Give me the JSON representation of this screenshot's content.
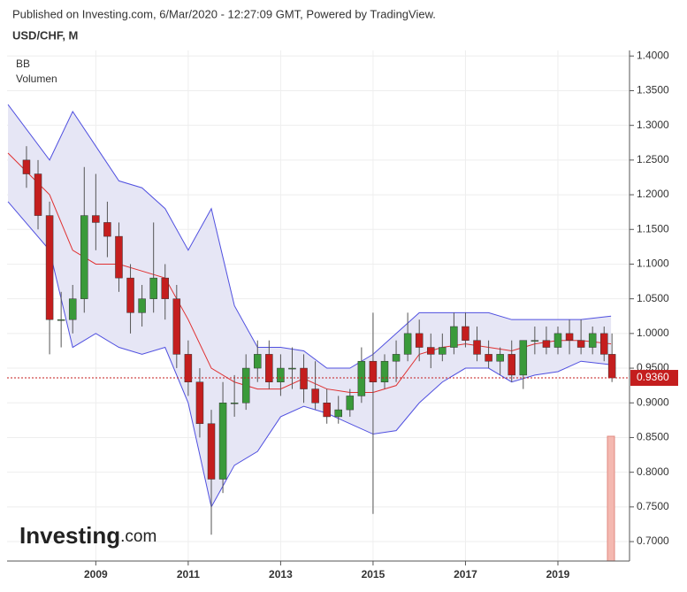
{
  "header": {
    "published": "Published on Investing.com, 6/Mar/2020 - 12:27:09 GMT, Powered by TradingView.",
    "symbol": "USD/CHF, M"
  },
  "indicators": [
    "BB",
    "Volumen"
  ],
  "logo": {
    "main": "Investing",
    "suffix": ".com"
  },
  "chart_data": {
    "type": "candlestick",
    "x": [
      2007.5,
      2007.75,
      2008.0,
      2008.25,
      2008.5,
      2008.75,
      2009.0,
      2009.25,
      2009.5,
      2009.75,
      2010.0,
      2010.25,
      2010.5,
      2010.75,
      2011.0,
      2011.25,
      2011.5,
      2011.75,
      2012.0,
      2012.25,
      2012.5,
      2012.75,
      2013.0,
      2013.25,
      2013.5,
      2013.75,
      2014.0,
      2014.25,
      2014.5,
      2014.75,
      2015.0,
      2015.25,
      2015.5,
      2015.75,
      2016.0,
      2016.25,
      2016.5,
      2016.75,
      2017.0,
      2017.25,
      2017.5,
      2017.75,
      2018.0,
      2018.25,
      2018.5,
      2018.75,
      2019.0,
      2019.25,
      2019.5,
      2019.75,
      2020.0,
      2020.17
    ],
    "open": [
      1.25,
      1.23,
      1.17,
      1.02,
      1.02,
      1.05,
      1.17,
      1.16,
      1.14,
      1.08,
      1.03,
      1.05,
      1.08,
      1.05,
      0.97,
      0.93,
      0.87,
      0.79,
      0.9,
      0.9,
      0.95,
      0.97,
      0.93,
      0.95,
      0.95,
      0.92,
      0.9,
      0.88,
      0.89,
      0.91,
      0.96,
      0.93,
      0.96,
      0.97,
      1.0,
      0.98,
      0.97,
      0.98,
      1.01,
      0.99,
      0.97,
      0.96,
      0.97,
      0.94,
      0.99,
      0.99,
      0.98,
      1.0,
      0.99,
      0.98,
      1.0,
      0.97
    ],
    "high": [
      1.27,
      1.25,
      1.19,
      1.06,
      1.07,
      1.24,
      1.23,
      1.19,
      1.16,
      1.1,
      1.07,
      1.16,
      1.1,
      1.07,
      0.99,
      0.95,
      0.89,
      0.93,
      0.94,
      0.97,
      0.99,
      0.99,
      0.97,
      0.98,
      0.97,
      0.96,
      0.92,
      0.91,
      0.92,
      0.98,
      1.03,
      0.97,
      0.99,
      1.03,
      1.02,
      1.0,
      1.0,
      1.03,
      1.03,
      1.01,
      0.99,
      0.98,
      0.99,
      0.99,
      1.01,
      1.01,
      1.01,
      1.02,
      1.02,
      1.01,
      1.01,
      1.0
    ],
    "low": [
      1.21,
      1.15,
      0.97,
      0.98,
      1.0,
      1.03,
      1.12,
      1.11,
      1.06,
      1.0,
      1.01,
      1.03,
      1.02,
      0.95,
      0.91,
      0.85,
      0.71,
      0.77,
      0.88,
      0.89,
      0.93,
      0.92,
      0.91,
      0.92,
      0.9,
      0.89,
      0.87,
      0.87,
      0.88,
      0.9,
      0.74,
      0.92,
      0.93,
      0.96,
      0.96,
      0.95,
      0.96,
      0.97,
      0.98,
      0.96,
      0.95,
      0.94,
      0.93,
      0.92,
      0.97,
      0.97,
      0.97,
      0.97,
      0.97,
      0.97,
      0.96,
      0.93
    ],
    "close": [
      1.23,
      1.17,
      1.02,
      1.02,
      1.05,
      1.17,
      1.16,
      1.14,
      1.08,
      1.03,
      1.05,
      1.08,
      1.05,
      0.97,
      0.93,
      0.87,
      0.79,
      0.9,
      0.9,
      0.95,
      0.97,
      0.93,
      0.95,
      0.95,
      0.92,
      0.9,
      0.88,
      0.89,
      0.91,
      0.96,
      0.93,
      0.96,
      0.97,
      1.0,
      0.98,
      0.97,
      0.98,
      1.01,
      0.99,
      0.97,
      0.96,
      0.97,
      0.94,
      0.99,
      0.99,
      0.98,
      1.0,
      0.99,
      0.98,
      1.0,
      0.97,
      0.936
    ],
    "up_color": "#3a9a3a",
    "down_color": "#c41e1e",
    "bands": {
      "x": [
        2007.1,
        2008.0,
        2008.5,
        2009.0,
        2009.5,
        2010.0,
        2010.5,
        2011.0,
        2011.5,
        2012.0,
        2012.5,
        2013.0,
        2013.5,
        2014.0,
        2014.5,
        2015.0,
        2015.5,
        2016.0,
        2016.5,
        2017.0,
        2017.5,
        2018.0,
        2018.5,
        2019.0,
        2019.5,
        2020.15
      ],
      "upper": [
        1.33,
        1.25,
        1.32,
        1.27,
        1.22,
        1.21,
        1.18,
        1.12,
        1.18,
        1.04,
        0.98,
        0.98,
        0.975,
        0.95,
        0.95,
        0.97,
        1.0,
        1.03,
        1.03,
        1.03,
        1.03,
        1.02,
        1.02,
        1.02,
        1.02,
        1.025
      ],
      "middle": [
        1.26,
        1.2,
        1.12,
        1.1,
        1.1,
        1.09,
        1.08,
        1.02,
        0.95,
        0.93,
        0.92,
        0.92,
        0.935,
        0.92,
        0.915,
        0.915,
        0.925,
        0.97,
        0.98,
        0.985,
        0.98,
        0.975,
        0.985,
        0.99,
        0.99,
        0.985
      ],
      "lower": [
        1.19,
        1.12,
        0.98,
        1.0,
        0.98,
        0.97,
        0.98,
        0.9,
        0.75,
        0.81,
        0.83,
        0.88,
        0.895,
        0.885,
        0.87,
        0.855,
        0.86,
        0.9,
        0.93,
        0.95,
        0.95,
        0.93,
        0.94,
        0.945,
        0.96,
        0.955
      ],
      "band_color": "#5050e0",
      "mid_color": "#e03030",
      "fill": "#e6e6f5"
    },
    "last_price": {
      "value": 0.936,
      "label": "0.9360"
    },
    "xlim": [
      2007.08,
      2020.55
    ],
    "ylim": [
      0.672,
      1.408
    ],
    "xticks": [
      2009,
      2011,
      2013,
      2015,
      2017,
      2019
    ],
    "yticks": [
      {
        "value": 0.7,
        "label": "0.7000"
      },
      {
        "value": 0.75,
        "label": "0.7500"
      },
      {
        "value": 0.8,
        "label": "0.8000"
      },
      {
        "value": 0.85,
        "label": "0.8500"
      },
      {
        "value": 0.9,
        "label": "0.9000"
      },
      {
        "value": 0.95,
        "label": "0.9500"
      },
      {
        "value": 1.0,
        "label": "1.0000"
      },
      {
        "value": 1.05,
        "label": "1.0500"
      },
      {
        "value": 1.1,
        "label": "1.1000"
      },
      {
        "value": 1.15,
        "label": "1.1500"
      },
      {
        "value": 1.2,
        "label": "1.2000"
      },
      {
        "value": 1.25,
        "label": "1.2500"
      },
      {
        "value": 1.3,
        "label": "1.3000"
      },
      {
        "value": 1.35,
        "label": "1.3500"
      },
      {
        "value": 1.4,
        "label": "1.4000"
      }
    ],
    "grid": true
  }
}
